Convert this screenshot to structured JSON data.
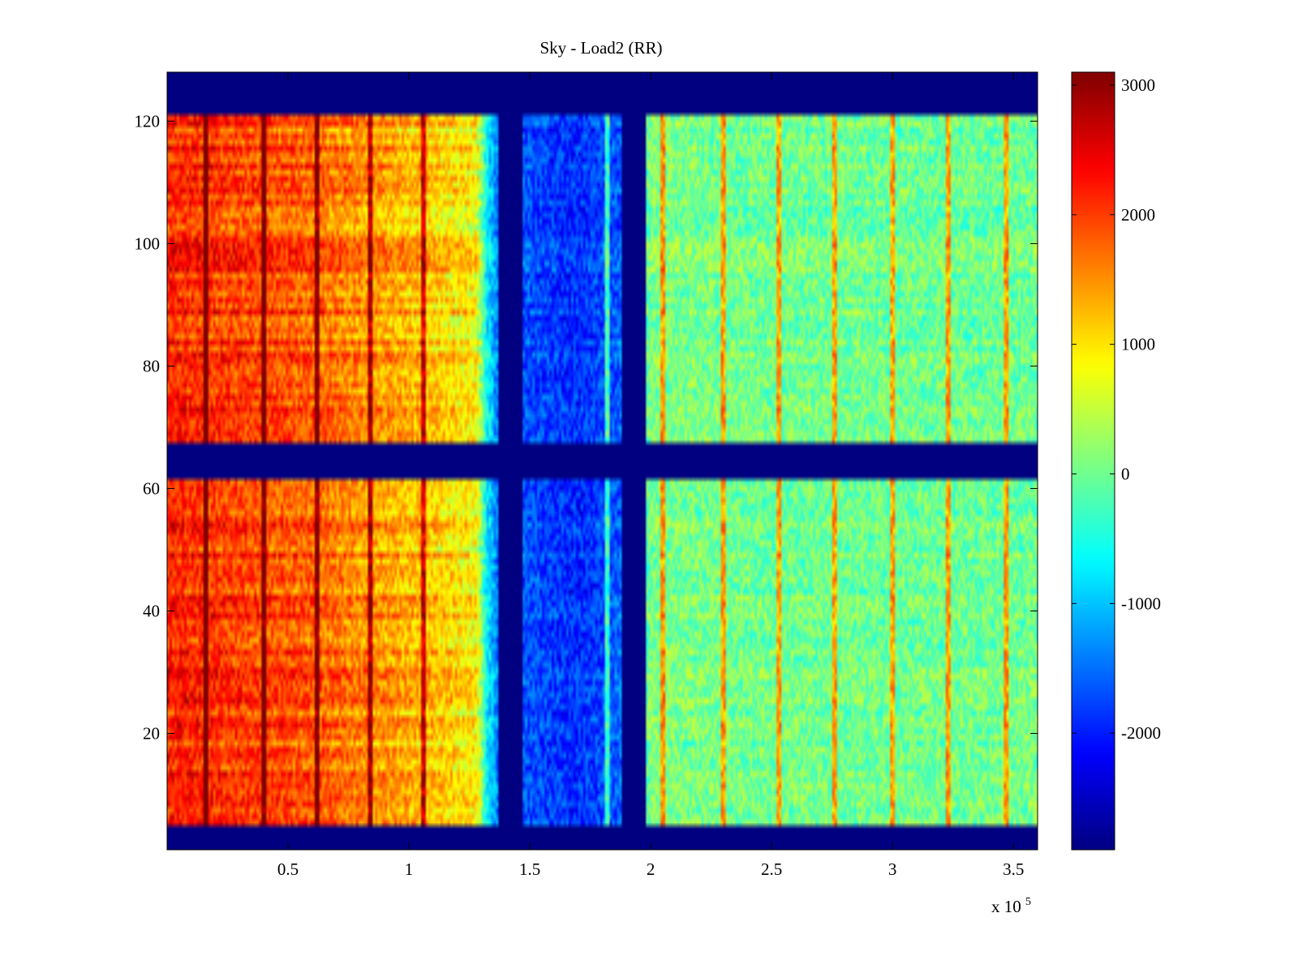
{
  "chart_data": {
    "type": "heatmap",
    "title": "Sky - Load2 (RR)",
    "xlabel": "",
    "ylabel": "",
    "x_multiplier_label": "x 10",
    "x_multiplier_exponent": "5",
    "xlim": [
      0,
      3.6
    ],
    "ylim": [
      1,
      128
    ],
    "x_ticks": [
      0.5,
      1,
      1.5,
      2,
      2.5,
      3,
      3.5
    ],
    "x_tick_labels": [
      "0.5",
      "1",
      "1.5",
      "2",
      "2.5",
      "3",
      "3.5"
    ],
    "y_ticks": [
      20,
      40,
      60,
      80,
      100,
      120
    ],
    "y_tick_labels": [
      "20",
      "40",
      "60",
      "80",
      "100",
      "120"
    ],
    "colorbar": {
      "colormap": "jet",
      "range": [
        -2900,
        3100
      ],
      "ticks": [
        3000,
        2000,
        1000,
        0,
        -1000,
        -2000
      ],
      "tick_labels": [
        "3000",
        "2000",
        "1000",
        "0",
        "-1000",
        "-2000"
      ]
    },
    "masked_value": -2900,
    "masked_rows": [
      [
        1,
        4
      ],
      [
        62,
        67
      ],
      [
        122,
        128
      ]
    ],
    "masked_columns_x": [
      [
        1.37,
        1.47
      ],
      [
        1.88,
        1.98
      ]
    ],
    "column_trend_x": [
      0,
      0.3,
      0.6,
      1.0,
      1.28,
      1.32,
      1.37,
      1.5,
      1.7,
      1.87,
      2.0,
      2.5,
      3.0,
      3.6
    ],
    "column_trend_value": [
      2200,
      2000,
      1800,
      1300,
      900,
      -600,
      -1500,
      -1700,
      -1900,
      -1600,
      100,
      0,
      0,
      0
    ],
    "streak_x": [
      0.16,
      0.4,
      0.62,
      0.84,
      1.06,
      1.82,
      2.05,
      2.3,
      2.53,
      2.76,
      3.0,
      3.23,
      3.47
    ]
  }
}
